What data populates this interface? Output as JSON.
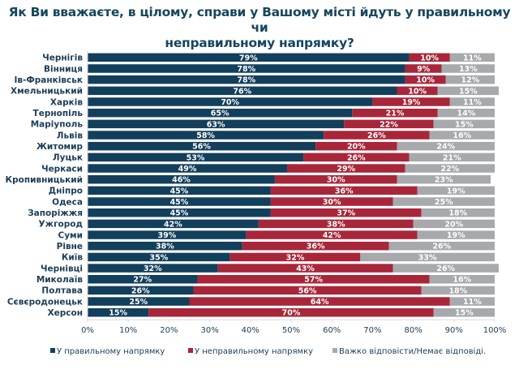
{
  "chart_data": {
    "type": "bar",
    "orientation": "horizontal",
    "stacked": true,
    "title": "Як Ви вважаєте, в цілому, справи у Вашому місті йдуть у правильному чи неправильному напрямку?",
    "title_lines": [
      "Як Ви вважаєте, в цілому, справи у Вашому місті йдуть у правильному чи",
      "неправильному напрямку?"
    ],
    "xlabel": "",
    "ylabel": "",
    "xlim": [
      0,
      100
    ],
    "x_ticks": [
      "0%",
      "10%",
      "20%",
      "30%",
      "40%",
      "50%",
      "60%",
      "70%",
      "80%",
      "90%",
      "100%"
    ],
    "grid": false,
    "legend_position": "bottom",
    "categories": [
      "Чернігів",
      "Вінниця",
      "Ів-Франківськ",
      "Хмельницький",
      "Харків",
      "Тернопіль",
      "Маріуполь",
      "Львів",
      "Житомир",
      "Луцьк",
      "Черкаси",
      "Кропивницький",
      "Дніпро",
      "Одеса",
      "Запоріжжя",
      "Ужгород",
      "Суми",
      "Рівне",
      "Київ",
      "Чернівці",
      "Миколаїв",
      "Полтава",
      "Сєвєродонецьк",
      "Херсон"
    ],
    "series": [
      {
        "name": "У правильному напрямку",
        "color": "#123f5c",
        "values": [
          79,
          78,
          78,
          76,
          70,
          65,
          63,
          58,
          56,
          53,
          49,
          46,
          45,
          45,
          45,
          42,
          39,
          38,
          35,
          32,
          27,
          26,
          25,
          15
        ]
      },
      {
        "name": "У неправильному напрямку",
        "color": "#a8263a",
        "values": [
          10,
          9,
          10,
          10,
          19,
          21,
          22,
          26,
          20,
          26,
          29,
          30,
          36,
          30,
          37,
          38,
          42,
          36,
          32,
          43,
          57,
          56,
          64,
          70
        ]
      },
      {
        "name": "Важко відповісти/Немає відповіді.",
        "color": "#a7a9ac",
        "values": [
          11,
          13,
          12,
          15,
          11,
          14,
          15,
          16,
          24,
          21,
          22,
          23,
          19,
          25,
          18,
          20,
          19,
          26,
          33,
          26,
          16,
          18,
          11,
          15
        ]
      }
    ],
    "value_suffix": "%"
  }
}
